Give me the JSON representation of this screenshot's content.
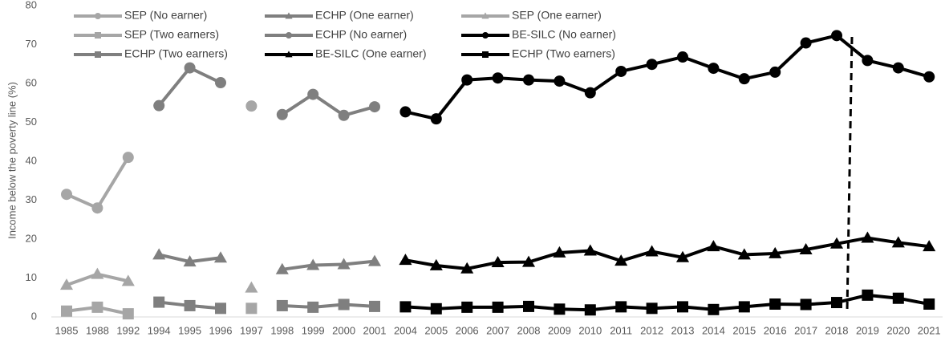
{
  "chart_data": {
    "type": "line",
    "y_label": "Income below the poverty line (%)",
    "categories": [
      "1985",
      "1988",
      "1992",
      "1994",
      "1995",
      "1996",
      "1997",
      "1998",
      "1999",
      "2000",
      "2001",
      "2004",
      "2005",
      "2006",
      "2007",
      "2008",
      "2009",
      "2010",
      "2011",
      "2012",
      "2013",
      "2014",
      "2015",
      "2016",
      "2017",
      "2018",
      "2019",
      "2020",
      "2021"
    ],
    "ylim": [
      0,
      80
    ],
    "yticks": [
      0,
      10,
      20,
      30,
      40,
      50,
      60,
      70,
      80
    ],
    "grid": false,
    "legend": "top",
    "series": [
      {
        "name": "SEP (No earner)",
        "color": "#a6a6a6",
        "marker": "circle",
        "values": [
          31.5,
          28,
          41,
          null,
          null,
          null,
          54.2,
          null,
          null,
          null,
          null,
          null,
          null,
          null,
          null,
          null,
          null,
          null,
          null,
          null,
          null,
          null,
          null,
          null,
          null,
          null,
          null,
          null,
          null
        ]
      },
      {
        "name": "ECHP (One earner)",
        "color": "#7f7f7f",
        "marker": "triangle",
        "values": [
          null,
          null,
          null,
          16,
          14.2,
          15.2,
          null,
          12.2,
          13.3,
          13.5,
          14.3,
          null,
          null,
          null,
          null,
          null,
          null,
          null,
          null,
          null,
          null,
          null,
          null,
          null,
          null,
          null,
          null,
          null,
          null
        ]
      },
      {
        "name": "SEP (One earner)",
        "color": "#a6a6a6",
        "marker": "triangle",
        "values": [
          8.2,
          11,
          9.2,
          null,
          null,
          null,
          7.5,
          null,
          null,
          null,
          null,
          null,
          null,
          null,
          null,
          null,
          null,
          null,
          null,
          null,
          null,
          null,
          null,
          null,
          null,
          null,
          null,
          null,
          null
        ]
      },
      {
        "name": "SEP (Two earners)",
        "color": "#a6a6a6",
        "marker": "square",
        "values": [
          1.5,
          2.5,
          0.8,
          null,
          null,
          null,
          2.2,
          null,
          null,
          null,
          null,
          null,
          null,
          null,
          null,
          null,
          null,
          null,
          null,
          null,
          null,
          null,
          null,
          null,
          null,
          null,
          null,
          null,
          null
        ]
      },
      {
        "name": "ECHP (No earner)",
        "color": "#7f7f7f",
        "marker": "circle",
        "values": [
          null,
          null,
          null,
          54.3,
          64,
          60.2,
          null,
          52,
          57.2,
          51.8,
          54,
          null,
          null,
          null,
          null,
          null,
          null,
          null,
          null,
          null,
          null,
          null,
          null,
          null,
          null,
          null,
          null,
          null,
          null
        ]
      },
      {
        "name": "BE-SILC (No earner)",
        "color": "#000000",
        "marker": "circle",
        "values": [
          null,
          null,
          null,
          null,
          null,
          null,
          null,
          null,
          null,
          null,
          null,
          52.7,
          50.9,
          60.9,
          61.4,
          60.9,
          60.6,
          57.6,
          63.1,
          64.9,
          66.8,
          63.9,
          61.2,
          62.9,
          70.4,
          72.3,
          65.9,
          64,
          61.7
        ]
      },
      {
        "name": "ECHP (Two earners)",
        "color": "#7f7f7f",
        "marker": "square",
        "values": [
          null,
          null,
          null,
          3.8,
          2.9,
          2.2,
          null,
          2.9,
          2.5,
          3.2,
          2.7,
          null,
          null,
          null,
          null,
          null,
          null,
          null,
          null,
          null,
          null,
          null,
          null,
          null,
          null,
          null,
          null,
          null,
          null
        ]
      },
      {
        "name": "BE-SILC (One earner)",
        "color": "#000000",
        "marker": "triangle",
        "values": [
          null,
          null,
          null,
          null,
          null,
          null,
          null,
          null,
          null,
          null,
          null,
          14.6,
          13.2,
          12.4,
          14,
          14.1,
          16.5,
          17,
          14.4,
          16.8,
          15.3,
          18.1,
          16,
          16.3,
          17.3,
          18.8,
          20.3,
          19.1,
          18.1
        ]
      },
      {
        "name": "ECHP (Two earners)",
        "color": "#000000",
        "marker": "square",
        "values": [
          null,
          null,
          null,
          null,
          null,
          null,
          null,
          null,
          null,
          null,
          null,
          2.6,
          2.1,
          2.5,
          2.5,
          2.7,
          2,
          1.8,
          2.6,
          2.2,
          2.6,
          1.9,
          2.6,
          3.3,
          3.2,
          3.7,
          5.6,
          4.8,
          3.3
        ]
      }
    ]
  }
}
